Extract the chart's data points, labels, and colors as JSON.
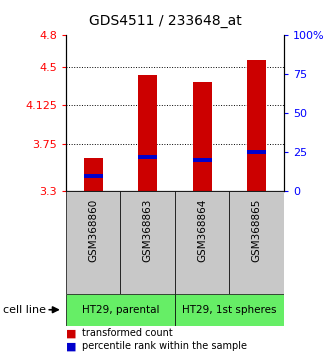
{
  "title": "GDS4511 / 233648_at",
  "samples": [
    "GSM368860",
    "GSM368863",
    "GSM368864",
    "GSM368865"
  ],
  "transformed_counts": [
    3.62,
    4.42,
    4.35,
    4.56
  ],
  "percentile_ranks": [
    10,
    22,
    20,
    25
  ],
  "ymin": 3.3,
  "ymax": 4.8,
  "yticks_left": [
    3.3,
    3.75,
    4.125,
    4.5,
    4.8
  ],
  "yticks_right_pct": [
    0,
    25,
    50,
    75,
    100
  ],
  "bar_color": "#cc0000",
  "pct_color": "#0000cc",
  "bar_width": 0.35,
  "cell_lines": [
    "HT29, parental",
    "HT29, 1st spheres"
  ],
  "legend_red": "transformed count",
  "legend_blue": "percentile rank within the sample",
  "gray_bg": "#c8c8c8",
  "green_bg": "#66ee66",
  "title_fontsize": 10,
  "tick_fontsize": 8,
  "label_fontsize": 7.5
}
